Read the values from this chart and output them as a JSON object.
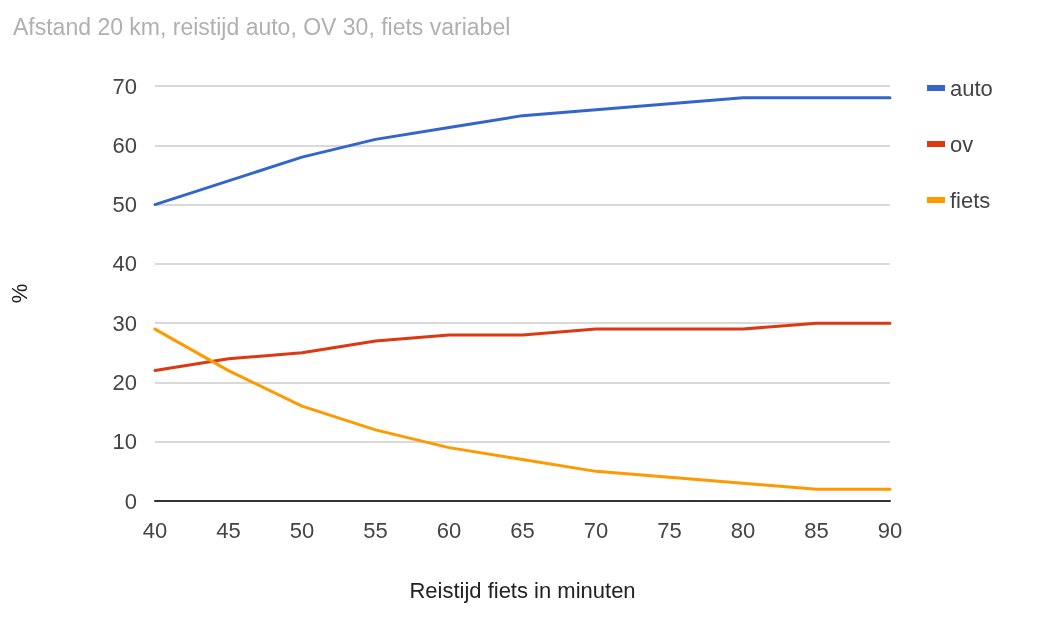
{
  "chart_data": {
    "type": "line",
    "title": "Afstand 20 km, reistijd auto, OV 30, fiets variabel",
    "xlabel": "Reistijd fiets in minuten",
    "ylabel": "%",
    "x": [
      40,
      45,
      50,
      55,
      60,
      65,
      70,
      75,
      80,
      85,
      90
    ],
    "series": [
      {
        "name": "auto",
        "color": "#3366cc",
        "values": [
          50,
          54,
          58,
          61,
          63,
          65,
          66,
          67,
          68,
          68,
          68
        ]
      },
      {
        "name": "ov",
        "color": "#dc3912",
        "values": [
          22,
          24,
          25,
          27,
          28,
          28,
          29,
          29,
          29,
          30,
          30
        ]
      },
      {
        "name": "fiets",
        "color": "#ff9900",
        "values": [
          29,
          22,
          16,
          12,
          9,
          7,
          5,
          4,
          3,
          2,
          2
        ]
      }
    ],
    "xlim": [
      40,
      90
    ],
    "xticks": [
      40,
      45,
      50,
      55,
      60,
      65,
      70,
      75,
      80,
      85,
      90
    ],
    "ylim": [
      0,
      70
    ],
    "yticks": [
      0,
      10,
      20,
      30,
      40,
      50,
      60,
      70
    ],
    "grid": "y",
    "legend": "right",
    "marker": "none",
    "line_style": "solid"
  }
}
